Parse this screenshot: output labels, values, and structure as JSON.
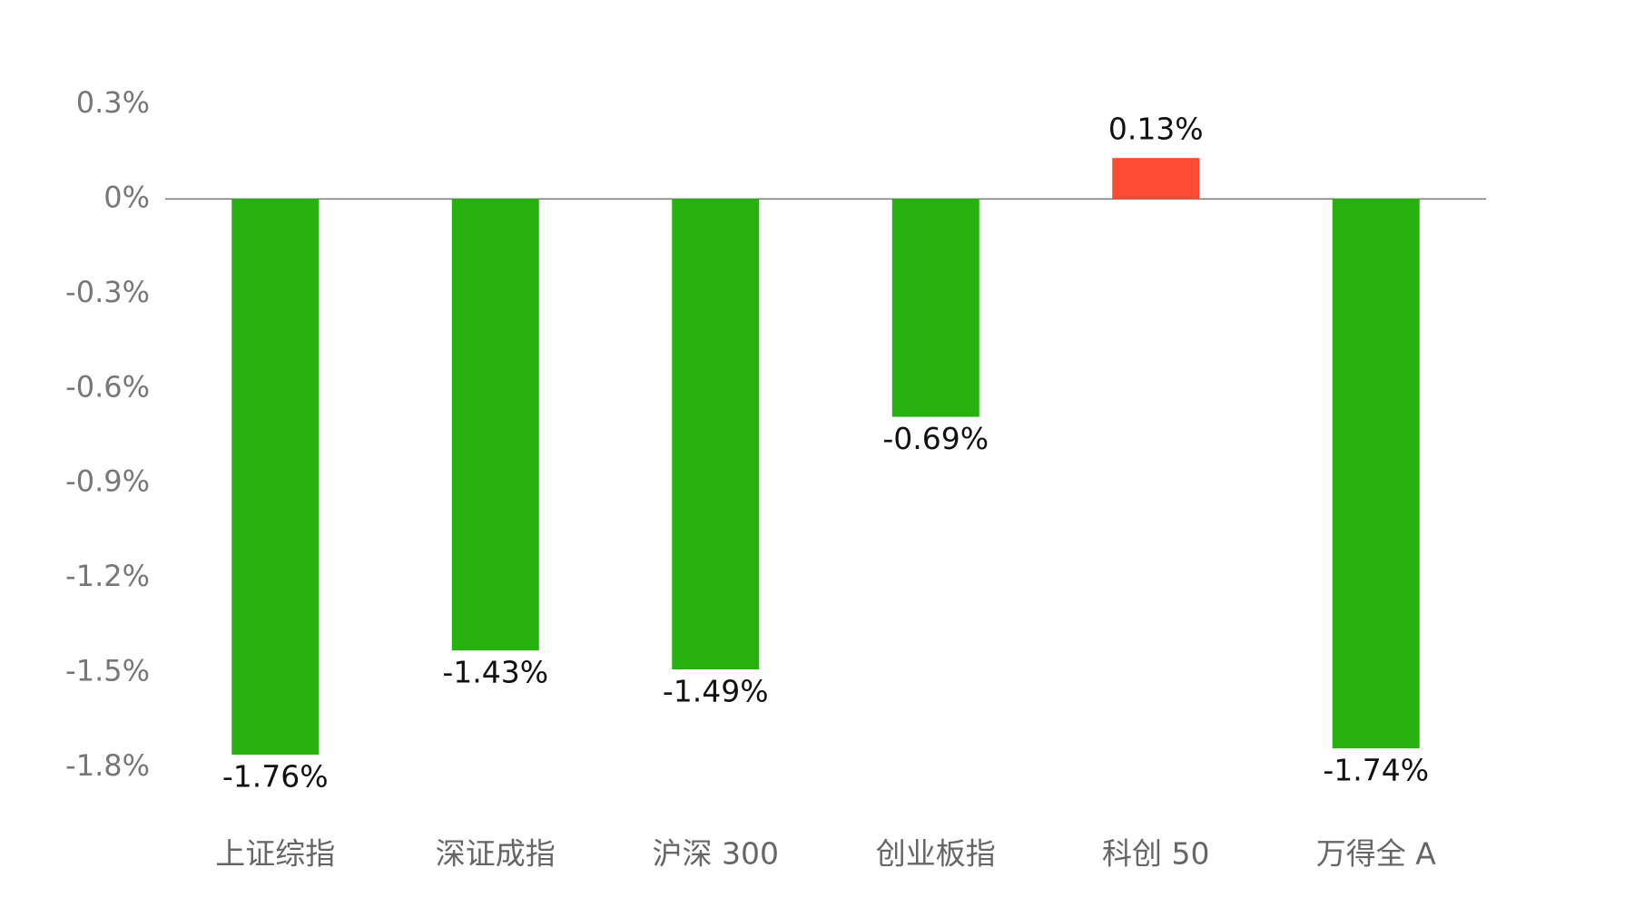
{
  "chart_data": {
    "type": "bar",
    "categories": [
      "上证综指",
      "深证成指",
      "沪深 300",
      "创业板指",
      "科创 50",
      "万得全 A"
    ],
    "values": [
      -1.76,
      -1.43,
      -1.49,
      -0.69,
      0.13,
      -1.74
    ],
    "value_labels": [
      "-1.76%",
      "-1.43%",
      "-1.49%",
      "-0.69%",
      "0.13%",
      "-1.74%"
    ],
    "colors": [
      "#28b20f",
      "#28b20f",
      "#28b20f",
      "#28b20f",
      "#ff4b33",
      "#28b20f"
    ],
    "ylim": [
      -1.8,
      0.3
    ],
    "yticks": [
      {
        "value": 0.3,
        "label": "0.3%"
      },
      {
        "value": 0,
        "label": "0%"
      },
      {
        "value": -0.3,
        "label": "-0.3%"
      },
      {
        "value": -0.6,
        "label": "-0.6%"
      },
      {
        "value": -0.9,
        "label": "-0.9%"
      },
      {
        "value": -1.2,
        "label": "-1.2%"
      },
      {
        "value": -1.5,
        "label": "-1.5%"
      },
      {
        "value": -1.8,
        "label": "-1.8%"
      }
    ],
    "zero_line": true
  }
}
